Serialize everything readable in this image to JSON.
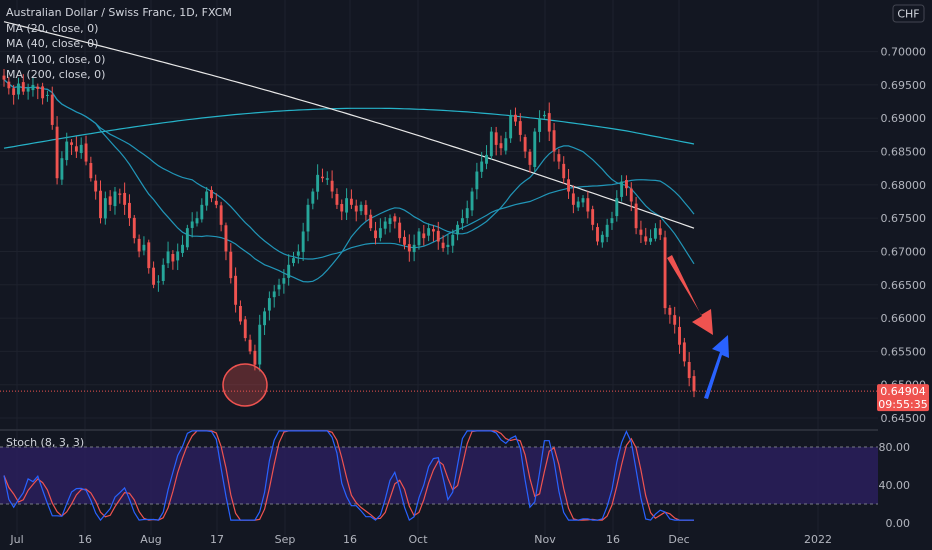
{
  "header": {
    "title": "Australian Dollar / Swiss Franc, 1D, FXCM",
    "indicators": [
      "MA (20, close, 0)",
      "MA (40, close, 0)",
      "MA (100, close, 0)",
      "MA (200, close, 0)"
    ]
  },
  "currency_button": "CHF",
  "last_price": {
    "value": "0.64904",
    "countdown": "09:55:35"
  },
  "stoch_label": "Stoch (8, 3, 3)",
  "colors": {
    "background": "#131722",
    "up": "#26a69a",
    "down": "#ef5350",
    "ma_short": "#2196b8",
    "ma_long": "#26b3c9",
    "ma200": "#e8e8e8",
    "stoch_k": "#2962ff",
    "stoch_d": "#ef5350",
    "stoch_band": "#2a1e5c"
  },
  "chart_data": [
    {
      "type": "candlestick",
      "title": "Australian Dollar / Swiss Franc, 1D, FXCM",
      "ylim": [
        0.6435,
        0.707
      ],
      "y_ticks": [
        "0.70000",
        "0.69500",
        "0.69000",
        "0.68500",
        "0.68000",
        "0.67500",
        "0.67000",
        "0.66500",
        "0.66000",
        "0.65500",
        "0.65000",
        "0.64500"
      ],
      "x_ticks": [
        "Jul",
        "16",
        "Aug",
        "17",
        "Sep",
        "16",
        "Oct",
        "Nov",
        "16",
        "Dec",
        "2022"
      ],
      "closes": [
        0.6958,
        0.6945,
        0.6935,
        0.6952,
        0.694,
        0.6945,
        0.695,
        0.6944,
        0.693,
        0.6935,
        0.689,
        0.681,
        0.684,
        0.6865,
        0.686,
        0.685,
        0.686,
        0.6835,
        0.681,
        0.679,
        0.675,
        0.678,
        0.677,
        0.679,
        0.6785,
        0.677,
        0.675,
        0.672,
        0.67,
        0.671,
        0.6675,
        0.665,
        0.6655,
        0.668,
        0.67,
        0.6685,
        0.67,
        0.671,
        0.6735,
        0.6745,
        0.675,
        0.677,
        0.679,
        0.678,
        0.677,
        0.674,
        0.67,
        0.666,
        0.662,
        0.6595,
        0.657,
        0.655,
        0.653,
        0.659,
        0.661,
        0.663,
        0.664,
        0.665,
        0.666,
        0.668,
        0.669,
        0.67,
        0.673,
        0.677,
        0.679,
        0.6815,
        0.681,
        0.681,
        0.679,
        0.677,
        0.676,
        0.678,
        0.677,
        0.676,
        0.677,
        0.6755,
        0.6735,
        0.672,
        0.6735,
        0.6745,
        0.675,
        0.6745,
        0.672,
        0.671,
        0.67,
        0.671,
        0.673,
        0.672,
        0.6735,
        0.673,
        0.6715,
        0.6705,
        0.671,
        0.6725,
        0.674,
        0.675,
        0.6765,
        0.679,
        0.682,
        0.6835,
        0.6845,
        0.688,
        0.686,
        0.6855,
        0.687,
        0.6905,
        0.6895,
        0.6875,
        0.685,
        0.683,
        0.688,
        0.69,
        0.6905,
        0.688,
        0.685,
        0.6835,
        0.681,
        0.679,
        0.677,
        0.6775,
        0.678,
        0.676,
        0.674,
        0.6715,
        0.6725,
        0.674,
        0.675,
        0.678,
        0.6805,
        0.6795,
        0.6775,
        0.6735,
        0.6725,
        0.6715,
        0.672,
        0.6735,
        0.6725,
        0.6615,
        0.6605,
        0.659,
        0.656,
        0.6535,
        0.651,
        0.649
      ],
      "series": [
        {
          "name": "MA (20, close, 0)",
          "color": "#2196b8"
        },
        {
          "name": "MA (40, close, 0)",
          "color": "#2196b8"
        },
        {
          "name": "MA (100, close, 0)",
          "color": "#26b3c9"
        },
        {
          "name": "MA (200, close, 0)",
          "color": "#e8e8e8"
        }
      ],
      "last_price": 0.64904
    },
    {
      "type": "line",
      "title": "Stoch (8, 3, 3)",
      "ylim": [
        0,
        100
      ],
      "y_ticks": [
        "80.00",
        "40.00",
        "0.00"
      ],
      "band": [
        20,
        80
      ]
    }
  ]
}
